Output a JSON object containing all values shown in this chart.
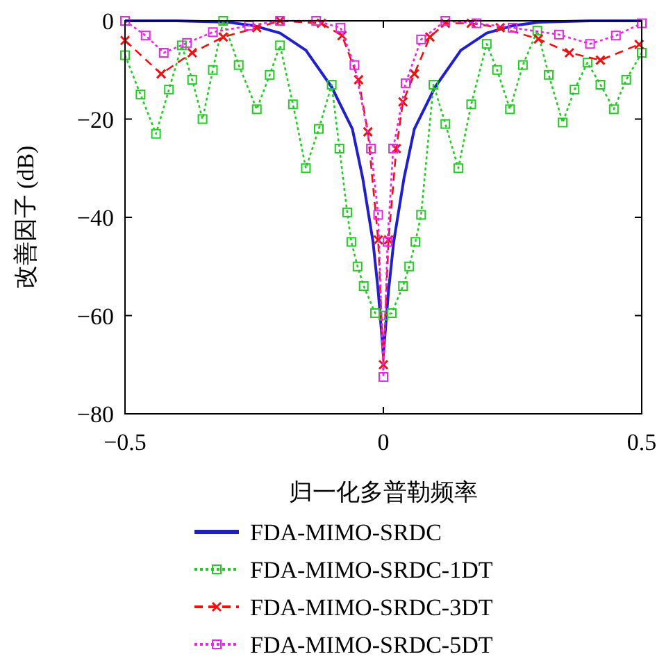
{
  "chart_data": {
    "type": "line",
    "xlabel": "归一化多普勒频率",
    "ylabel": "改善因子 (dB)",
    "xlim": [
      -0.5,
      0.5
    ],
    "ylim": [
      -80,
      0
    ],
    "xticks": [
      {
        "value": -0.5,
        "label": "−0.5"
      },
      0,
      {
        "value": 0.5,
        "label": "0.5"
      }
    ],
    "yticks": [
      {
        "value": -80,
        "label": "−80"
      },
      {
        "value": -60,
        "label": "−60"
      },
      {
        "value": -40,
        "label": "−40"
      },
      {
        "value": -20,
        "label": "−20"
      },
      0
    ],
    "grid": false,
    "legend": "bottom",
    "series": [
      {
        "name": "FDA-MIMO-SRDC",
        "color": "#1f1fd0",
        "marker": "none",
        "line_style": "solid",
        "x": [
          -0.5,
          -0.4,
          -0.3,
          -0.25,
          -0.2,
          -0.15,
          -0.1,
          -0.06,
          -0.04,
          -0.02,
          -0.01,
          0,
          0.01,
          0.02,
          0.04,
          0.06,
          0.1,
          0.15,
          0.2,
          0.25,
          0.3,
          0.4,
          0.5
        ],
        "values": [
          0,
          0,
          -0.3,
          -1,
          -2.5,
          -6,
          -13.5,
          -22,
          -32,
          -45,
          -55,
          -68,
          -55,
          -45,
          -32,
          -22,
          -13.5,
          -6,
          -2.5,
          -1,
          -0.3,
          0,
          0
        ]
      },
      {
        "name": "FDA-MIMO-SRDC-1DT",
        "color": "#22cc22",
        "marker": "square",
        "line_style": "dotted",
        "x": [
          -0.5,
          -0.47,
          -0.44,
          -0.415,
          -0.39,
          -0.37,
          -0.35,
          -0.33,
          -0.31,
          -0.28,
          -0.245,
          -0.22,
          -0.2,
          -0.175,
          -0.15,
          -0.125,
          -0.1,
          -0.085,
          -0.07,
          -0.062,
          -0.05,
          -0.038,
          -0.016,
          0,
          0.016,
          0.038,
          0.05,
          0.062,
          0.073,
          0.097,
          0.12,
          0.145,
          0.17,
          0.2,
          0.22,
          0.245,
          0.27,
          0.298,
          0.32,
          0.347,
          0.37,
          0.395,
          0.42,
          0.446,
          0.47,
          0.5
        ],
        "values": [
          -7,
          -15,
          -23,
          -14,
          -5,
          -12,
          -20,
          -10,
          0,
          -9,
          -18,
          -11,
          -5,
          -17,
          -30,
          -22,
          -13,
          -26,
          -39,
          -45,
          -50,
          -54,
          -59.5,
          -60,
          -59.5,
          -54,
          -50,
          -45,
          -39.5,
          -13,
          -21,
          -30,
          -17,
          -4.7,
          -10,
          -18,
          -9,
          -2,
          -11,
          -20.7,
          -14,
          -8.5,
          -13,
          -18,
          -12,
          -6.5
        ]
      },
      {
        "name": "FDA-MIMO-SRDC-3DT",
        "color": "#ee1111",
        "marker": "cross",
        "line_style": "dashed",
        "x": [
          -0.5,
          -0.43,
          -0.37,
          -0.31,
          -0.245,
          -0.2,
          -0.12,
          -0.08,
          -0.048,
          -0.03,
          -0.01,
          0,
          0.01,
          0.025,
          0.038,
          0.06,
          0.09,
          0.12,
          0.17,
          0.226,
          0.3,
          0.36,
          0.42,
          0.495
        ],
        "values": [
          -4,
          -10.8,
          -6.5,
          -3.3,
          -1.4,
          0,
          -0.5,
          -3,
          -12,
          -22.6,
          -44.6,
          -70,
          -44.6,
          -26,
          -16.5,
          -10.8,
          -3.3,
          -0.5,
          -0.5,
          -1.4,
          -3.7,
          -6.5,
          -8,
          -4.8
        ]
      },
      {
        "name": "FDA-MIMO-SRDC-5DT",
        "color": "#ee22ee",
        "marker": "square",
        "line_style": "dotted",
        "x": [
          -0.5,
          -0.46,
          -0.425,
          -0.38,
          -0.33,
          -0.26,
          -0.2,
          -0.13,
          -0.083,
          -0.056,
          -0.024,
          -0.01,
          0,
          0.008,
          0.019,
          0.043,
          0.073,
          0.12,
          0.18,
          0.25,
          0.34,
          0.4,
          0.45,
          0.5
        ],
        "values": [
          0,
          -3,
          -6.5,
          -4.5,
          -2.3,
          -1,
          0,
          0,
          -1.4,
          -9,
          -26,
          -39.5,
          -72.5,
          -45,
          -26,
          -12.7,
          -3.8,
          0,
          -0.5,
          -1.4,
          -2.8,
          -4.7,
          -3,
          -0.5
        ]
      }
    ]
  }
}
